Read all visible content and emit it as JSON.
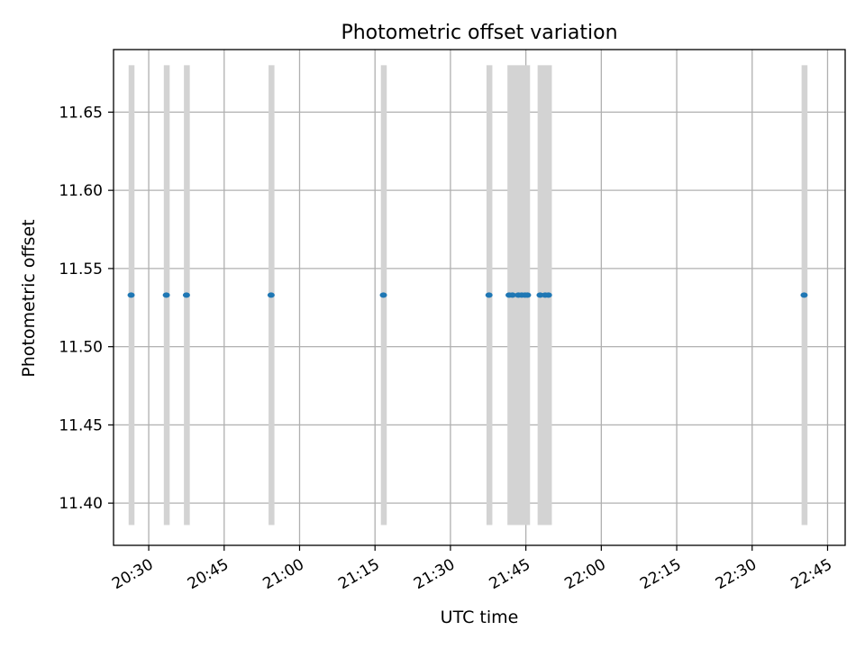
{
  "chart_data": {
    "type": "scatter",
    "title": "Photometric offset variation",
    "xlabel": "UTC time",
    "ylabel": "Photometric offset",
    "xlim": [
      "20:23:00",
      "22:48:30"
    ],
    "ylim": [
      11.373,
      11.69
    ],
    "x_ticks": [
      "20:30",
      "20:45",
      "21:00",
      "21:15",
      "21:30",
      "21:45",
      "22:00",
      "22:15",
      "22:30",
      "22:45"
    ],
    "y_ticks": [
      11.4,
      11.45,
      11.5,
      11.55,
      11.6,
      11.65
    ],
    "y_tick_labels": [
      "11.40",
      "11.45",
      "11.50",
      "11.55",
      "11.60",
      "11.65"
    ],
    "grid": true,
    "series": [
      {
        "color": "#1f77b4",
        "marker": "dot",
        "points": [
          {
            "x": "20:26:30",
            "y": 11.533
          },
          {
            "x": "20:33:30",
            "y": 11.533
          },
          {
            "x": "20:37:30",
            "y": 11.533
          },
          {
            "x": "20:54:20",
            "y": 11.533
          },
          {
            "x": "21:16:40",
            "y": 11.533
          },
          {
            "x": "21:37:40",
            "y": 11.533
          },
          {
            "x": "21:41:40",
            "y": 11.533
          },
          {
            "x": "21:42:20",
            "y": 11.533
          },
          {
            "x": "21:43:30",
            "y": 11.533
          },
          {
            "x": "21:44:10",
            "y": 11.533
          },
          {
            "x": "21:44:50",
            "y": 11.533
          },
          {
            "x": "21:45:20",
            "y": 11.533
          },
          {
            "x": "21:47:50",
            "y": 11.533
          },
          {
            "x": "21:48:50",
            "y": 11.533
          },
          {
            "x": "21:49:30",
            "y": 11.533
          },
          {
            "x": "22:40:20",
            "y": 11.533
          }
        ]
      }
    ],
    "intervals": {
      "color": "#d3d3d3",
      "y_range": [
        11.386,
        11.68
      ],
      "spans": [
        {
          "start": "20:26:00",
          "end": "20:27:10"
        },
        {
          "start": "20:33:00",
          "end": "20:34:10"
        },
        {
          "start": "20:37:00",
          "end": "20:38:10"
        },
        {
          "start": "20:53:50",
          "end": "20:55:00"
        },
        {
          "start": "21:16:10",
          "end": "21:17:20"
        },
        {
          "start": "21:37:10",
          "end": "21:38:20"
        },
        {
          "start": "21:41:20",
          "end": "21:45:50"
        },
        {
          "start": "21:47:20",
          "end": "21:50:10"
        },
        {
          "start": "22:39:50",
          "end": "22:41:00"
        }
      ]
    }
  }
}
